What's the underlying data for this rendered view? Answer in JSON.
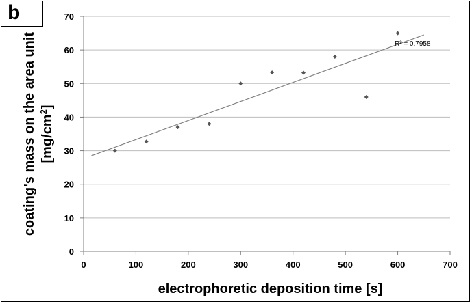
{
  "panel_label": "b",
  "chart_data": {
    "type": "scatter",
    "title": "",
    "xlabel": "electrophoretic deposition time [s]",
    "ylabel_line1": "coating's mass on the area unit",
    "ylabel_line2_prefix": "[mg/cm",
    "ylabel_line2_sup": "2",
    "ylabel_line2_suffix": "]",
    "xlim": [
      0,
      700
    ],
    "ylim": [
      0,
      70
    ],
    "x_ticks": [
      0,
      100,
      200,
      300,
      400,
      500,
      600,
      700
    ],
    "y_ticks": [
      0,
      10,
      20,
      30,
      40,
      50,
      60,
      70
    ],
    "grid": "horizontal",
    "series": [
      {
        "points": [
          {
            "x": 60,
            "y": 30
          },
          {
            "x": 120,
            "y": 32.7
          },
          {
            "x": 180,
            "y": 37
          },
          {
            "x": 240,
            "y": 38
          },
          {
            "x": 300,
            "y": 50
          },
          {
            "x": 360,
            "y": 53.3
          },
          {
            "x": 420,
            "y": 53.2
          },
          {
            "x": 480,
            "y": 58
          },
          {
            "x": 540,
            "y": 46
          },
          {
            "x": 600,
            "y": 65
          }
        ],
        "marker_color": "#555555"
      }
    ],
    "trendline": {
      "x_start": 15,
      "y_start": 28.5,
      "x_end": 650,
      "y_end": 64.5,
      "color": "#808080"
    },
    "annotation": "R² = 0.7958"
  }
}
